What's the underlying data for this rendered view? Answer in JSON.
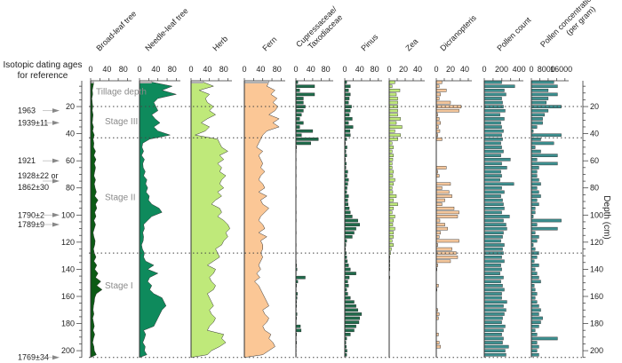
{
  "chart_data": {
    "type": "area",
    "title": "",
    "ylabel": "Depth (cm)",
    "ylim": [
      0,
      205
    ],
    "depth_ticks": [
      20,
      40,
      60,
      80,
      100,
      120,
      140,
      160,
      180,
      200
    ],
    "left_header": [
      "Isotopic dating ages",
      "for reference"
    ],
    "dating_ages": [
      {
        "label": "1963",
        "depth": 23
      },
      {
        "label": "1939±11",
        "depth": 32
      },
      {
        "label": "1921",
        "depth": 60
      },
      {
        "label": "1928±22 or",
        "depth": 71,
        "line2": "1862±30"
      },
      {
        "label": "1790±2",
        "depth": 100
      },
      {
        "label": "1789±9",
        "depth": 107
      },
      {
        "label": "1769±34",
        "depth": 205
      }
    ],
    "zone_boundaries": [
      20,
      43,
      128,
      205
    ],
    "zones": [
      {
        "label": "Tillage depth",
        "depth": 9
      },
      {
        "label": "Stage III",
        "depth": 31
      },
      {
        "label": "Stage II",
        "depth": 87
      },
      {
        "label": "Stage I",
        "depth": 152
      }
    ],
    "depths": [
      2,
      5,
      8,
      11,
      14,
      17,
      20,
      23,
      26,
      29,
      32,
      35,
      38,
      41,
      44,
      47,
      50,
      53,
      56,
      59,
      62,
      65,
      68,
      71,
      74,
      77,
      80,
      83,
      86,
      89,
      92,
      95,
      98,
      101,
      104,
      107,
      110,
      113,
      116,
      119,
      122,
      125,
      128,
      131,
      134,
      137,
      140,
      143,
      146,
      149,
      152,
      155,
      158,
      161,
      164,
      167,
      170,
      173,
      176,
      179,
      182,
      185,
      188,
      191,
      194,
      197,
      200,
      203
    ],
    "series": [
      {
        "name": "Broad-leaf tree",
        "style": "area",
        "color": "#0b5a14",
        "ticks": [
          "0",
          "40",
          "80"
        ],
        "max": 100,
        "values": [
          8,
          6,
          4,
          5,
          3,
          4,
          5,
          4,
          6,
          5,
          4,
          7,
          5,
          9,
          6,
          8,
          7,
          12,
          8,
          13,
          9,
          12,
          10,
          8,
          12,
          9,
          11,
          14,
          10,
          18,
          12,
          15,
          10,
          13,
          8,
          12,
          9,
          6,
          8,
          11,
          10,
          7,
          9,
          13,
          8,
          15,
          10,
          18,
          12,
          25,
          15,
          28,
          14,
          10,
          9,
          7,
          6,
          8,
          5,
          7,
          9,
          6,
          10,
          7,
          5,
          8,
          9,
          14
        ]
      },
      {
        "name": "Needle-leaf tree",
        "style": "area",
        "color": "#0e8a5c",
        "ticks": [
          "0",
          "40",
          "80"
        ],
        "max": 100,
        "values": [
          30,
          80,
          55,
          90,
          45,
          35,
          40,
          45,
          30,
          38,
          50,
          35,
          45,
          75,
          25,
          8,
          6,
          10,
          5,
          12,
          8,
          9,
          14,
          10,
          18,
          15,
          20,
          16,
          24,
          22,
          30,
          48,
          55,
          30,
          20,
          10,
          12,
          8,
          10,
          9,
          5,
          7,
          12,
          10,
          15,
          35,
          20,
          45,
          25,
          20,
          30,
          25,
          35,
          55,
          60,
          65,
          55,
          50,
          45,
          40,
          35,
          10,
          15,
          12,
          8,
          14,
          12,
          18
        ]
      },
      {
        "name": "Herb",
        "style": "area",
        "color": "#bfe97a",
        "ticks": [
          "0",
          "40",
          "80"
        ],
        "max": 100,
        "values": [
          30,
          55,
          20,
          45,
          35,
          40,
          55,
          45,
          60,
          40,
          25,
          45,
          35,
          10,
          65,
          70,
          75,
          90,
          70,
          80,
          65,
          75,
          70,
          85,
          75,
          70,
          80,
          65,
          75,
          60,
          50,
          70,
          75,
          65,
          80,
          90,
          95,
          85,
          90,
          80,
          75,
          60,
          65,
          70,
          55,
          40,
          60,
          55,
          45,
          50,
          60,
          55,
          40,
          45,
          50,
          55,
          45,
          50,
          60,
          55,
          45,
          40,
          80,
          75,
          85,
          70,
          50,
          40
        ]
      },
      {
        "name": "Fern",
        "style": "area",
        "color": "#fbc796",
        "ticks": [
          "0",
          "40",
          "80"
        ],
        "max": 100,
        "values": [
          60,
          55,
          75,
          65,
          80,
          70,
          82,
          75,
          60,
          85,
          70,
          85,
          55,
          45,
          40,
          35,
          30,
          45,
          35,
          40,
          45,
          40,
          50,
          40,
          35,
          45,
          50,
          35,
          55,
          40,
          45,
          60,
          50,
          40,
          35,
          45,
          50,
          35,
          55,
          40,
          45,
          45,
          40,
          45,
          40,
          35,
          40,
          30,
          38,
          25,
          35,
          40,
          45,
          50,
          55,
          60,
          45,
          50,
          60,
          55,
          45,
          50,
          65,
          60,
          70,
          75,
          60,
          45
        ]
      },
      {
        "name": "Cupressaceae/ Taxodiaceae",
        "style": "bar",
        "color": "#1f6b4b",
        "ticks": [
          "0",
          "40",
          "80"
        ],
        "max": 100,
        "values": [
          5,
          50,
          10,
          50,
          20,
          20,
          25,
          20,
          15,
          10,
          20,
          10,
          45,
          15,
          60,
          40,
          2,
          1,
          0,
          1,
          0,
          1,
          0,
          1,
          0,
          0,
          1,
          0,
          1,
          0,
          0,
          0,
          1,
          0,
          1,
          0,
          0,
          1,
          0,
          0,
          1,
          0,
          1,
          0,
          1,
          2,
          3,
          1,
          25,
          5,
          2,
          1,
          4,
          3,
          2,
          2,
          1,
          3,
          2,
          1,
          12,
          14,
          2,
          1,
          2,
          1,
          1,
          1
        ]
      },
      {
        "name": "Pinus",
        "style": "bar",
        "color": "#1f6b4b",
        "ticks": [
          "0",
          "40",
          "80"
        ],
        "max": 100,
        "values": [
          5,
          15,
          10,
          15,
          12,
          10,
          18,
          15,
          12,
          20,
          10,
          22,
          14,
          15,
          5,
          2,
          6,
          3,
          5,
          2,
          4,
          3,
          8,
          6,
          10,
          8,
          6,
          5,
          10,
          8,
          9,
          12,
          15,
          20,
          35,
          40,
          30,
          25,
          20,
          5,
          3,
          2,
          4,
          5,
          7,
          10,
          15,
          30,
          12,
          8,
          10,
          5,
          8,
          15,
          25,
          30,
          35,
          45,
          40,
          38,
          30,
          25,
          15,
          5,
          3,
          4,
          6,
          5
        ]
      },
      {
        "name": "Zea",
        "style": "bar",
        "color": "#bfe97a",
        "ticks": [
          "0",
          "20",
          "40"
        ],
        "max": 50,
        "values": [
          8,
          4,
          15,
          10,
          12,
          12,
          12,
          12,
          12,
          16,
          10,
          18,
          8,
          16,
          12,
          4,
          6,
          4,
          6,
          5,
          4,
          4,
          6,
          5,
          8,
          6,
          4,
          5,
          10,
          6,
          12,
          6,
          4,
          8,
          6,
          5,
          8,
          6,
          6,
          4,
          6,
          3,
          2,
          1,
          1,
          1,
          1,
          0,
          1,
          0,
          0,
          0,
          0,
          0,
          0,
          0,
          0,
          0,
          0,
          0,
          0,
          0,
          0,
          0,
          0,
          0,
          0,
          0
        ]
      },
      {
        "name": "Dicranopteris",
        "style": "bar",
        "color": "#f4c69b",
        "ticks": [
          "0",
          "20",
          "40"
        ],
        "max": 50,
        "values": [
          8,
          4,
          14,
          6,
          4,
          20,
          35,
          32,
          2,
          4,
          6,
          3,
          5,
          2,
          8,
          0,
          0,
          0,
          0,
          0,
          0,
          14,
          2,
          4,
          0,
          20,
          8,
          18,
          22,
          12,
          8,
          25,
          32,
          30,
          5,
          12,
          16,
          6,
          4,
          32,
          2,
          22,
          28,
          30,
          20,
          2,
          1,
          0,
          0,
          0,
          3,
          1,
          0,
          0,
          0,
          0,
          2,
          4,
          3,
          0,
          0,
          0,
          3,
          0,
          4,
          6,
          0,
          0
        ]
      },
      {
        "name": "Pollen count",
        "style": "bar",
        "color": "#3d8f8f",
        "ticks": [
          "0",
          "200",
          "400"
        ],
        "max": 450,
        "values": [
          200,
          350,
          230,
          250,
          200,
          210,
          220,
          240,
          180,
          230,
          190,
          200,
          220,
          200,
          210,
          190,
          200,
          220,
          190,
          300,
          200,
          260,
          190,
          200,
          180,
          340,
          200,
          230,
          190,
          210,
          220,
          230,
          200,
          290,
          220,
          250,
          260,
          220,
          210,
          190,
          230,
          210,
          220,
          200,
          230,
          190,
          200,
          180,
          220,
          190,
          210,
          230,
          200,
          200,
          260,
          220,
          250,
          230,
          210,
          200,
          240,
          220,
          200,
          220,
          210,
          280,
          240,
          250
        ]
      },
      {
        "name": "Pollen concentration (per gram)",
        "style": "bar",
        "color": "#3d8f8f",
        "ticks": [
          "0",
          "8000",
          "16000"
        ],
        "max": 20000,
        "values": [
          12000,
          14000,
          9000,
          14000,
          9000,
          8000,
          16000,
          9000,
          7000,
          6000,
          6000,
          3000,
          1000,
          16000,
          5000,
          12000,
          2000,
          5000,
          14000,
          3000,
          14000,
          4000,
          3000,
          3000,
          4000,
          5000,
          3000,
          4000,
          5000,
          3000,
          4000,
          2000,
          2000,
          1000,
          16000,
          3000,
          14000,
          2000,
          4000,
          3000,
          1000,
          2000,
          4000,
          3000,
          1500,
          4000,
          2000,
          3000,
          4000,
          5000,
          1500,
          2000,
          3000,
          2000,
          3000,
          4000,
          5000,
          4000,
          6000,
          5000,
          4000,
          2000,
          3000,
          14000,
          3000,
          4000,
          3000,
          4000
        ]
      }
    ]
  }
}
